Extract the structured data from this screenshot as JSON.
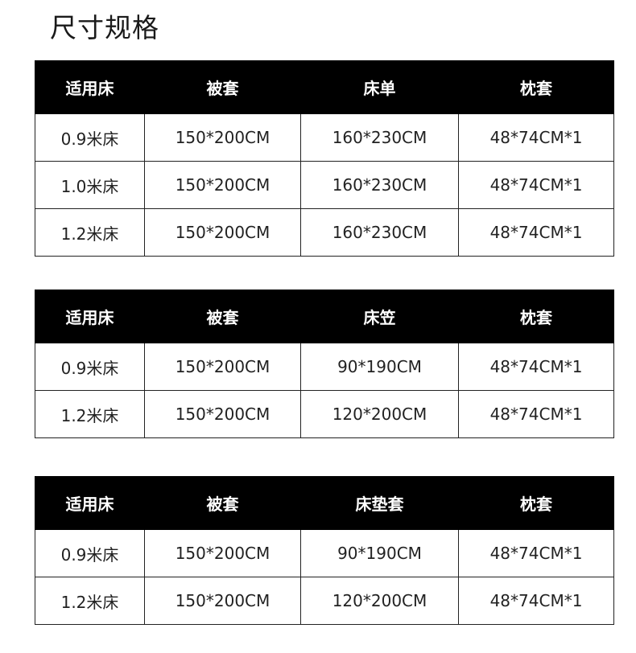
{
  "title": "尺寸规格",
  "tables": [
    {
      "headers": [
        "适用床",
        "被套",
        "床单",
        "枕套"
      ],
      "rows": [
        [
          "0.9米床",
          "150*200CM",
          "160*230CM",
          "48*74CM*1"
        ],
        [
          "1.0米床",
          "150*200CM",
          "160*230CM",
          "48*74CM*1"
        ],
        [
          "1.2米床",
          "150*200CM",
          "160*230CM",
          "48*74CM*1"
        ]
      ]
    },
    {
      "headers": [
        "适用床",
        "被套",
        "床笠",
        "枕套"
      ],
      "rows": [
        [
          "0.9米床",
          "150*200CM",
          "90*190CM",
          "48*74CM*1"
        ],
        [
          "1.2米床",
          "150*200CM",
          "120*200CM",
          "48*74CM*1"
        ]
      ]
    },
    {
      "headers": [
        "适用床",
        "被套",
        "床垫套",
        "枕套"
      ],
      "rows": [
        [
          "0.9米床",
          "150*200CM",
          "90*190CM",
          "48*74CM*1"
        ],
        [
          "1.2米床",
          "150*200CM",
          "120*200CM",
          "48*74CM*1"
        ]
      ]
    }
  ],
  "colors": {
    "header_bg": "#000000",
    "header_text": "#ffffff",
    "border": "#222222"
  }
}
